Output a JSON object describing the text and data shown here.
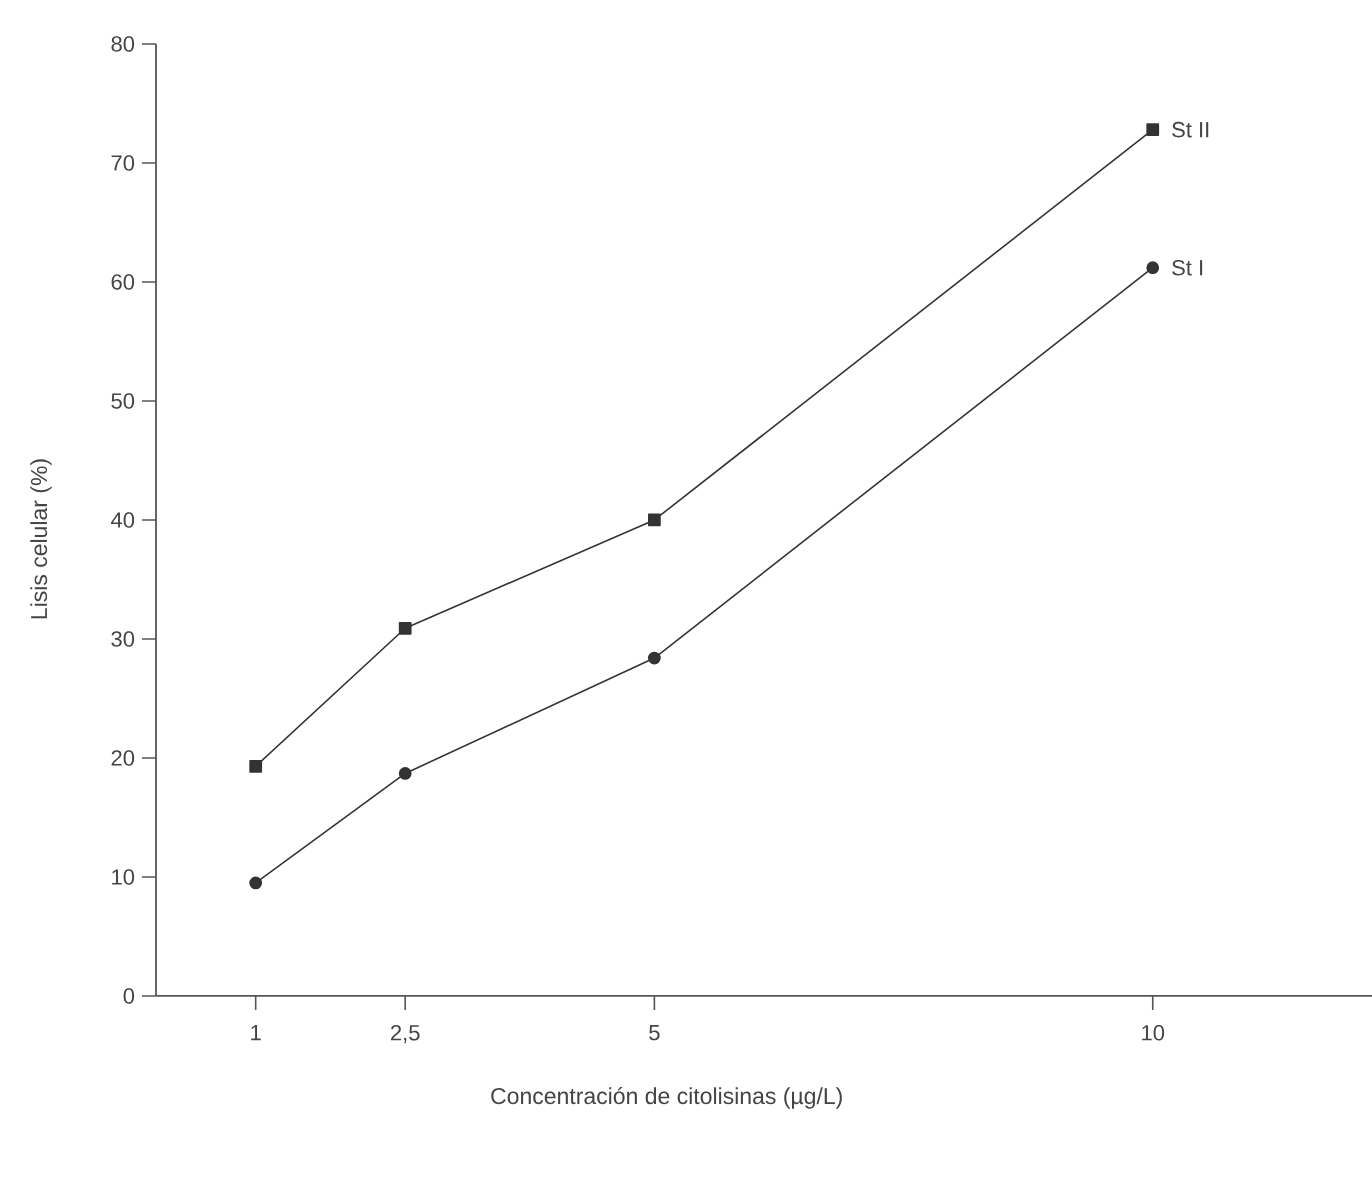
{
  "chart_data": {
    "type": "line",
    "xlabel": "Concentración de citolisinas (µg/L)",
    "ylabel": "Lisis celular (%)",
    "x": [
      1,
      2.5,
      5,
      10
    ],
    "series": [
      {
        "name": "St II",
        "color": "#333333",
        "marker": "square",
        "values": [
          19.3,
          30.9,
          40.0,
          72.8
        ]
      },
      {
        "name": "St I",
        "color": "#333333",
        "marker": "circle",
        "values": [
          9.5,
          18.7,
          28.4,
          61.2
        ]
      }
    ],
    "xlim": [
      0,
      12.2
    ],
    "xticks": [
      1,
      {
        "value": 2.5,
        "label": "2,5"
      },
      5,
      10
    ],
    "ylim": [
      0,
      80
    ],
    "yticks": [
      0,
      10,
      20,
      30,
      40,
      50,
      60,
      70,
      80
    ],
    "line_style": "solid"
  }
}
